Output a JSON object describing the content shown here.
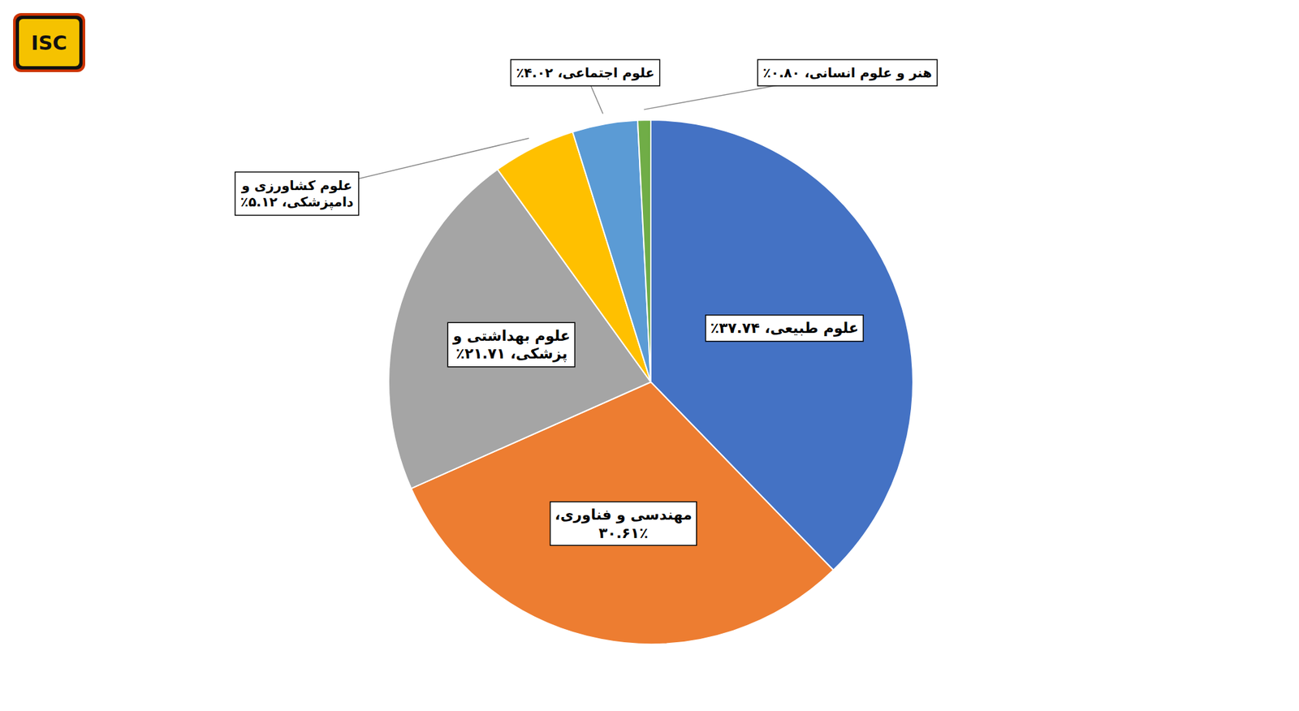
{
  "chart_data": {
    "type": "pie",
    "categories": [
      "علوم طبیعی، ۳۷.۷۴٪",
      "مهندسی و فناوری،\n۳۰.۶۱٪",
      "علوم بهداشتی و\nپزشکی، ۲۱.۷۱٪",
      "علوم کشاورزی و\nدامپزشکی، ۵.۱۲٪",
      "علوم اجتماعی، ۴.۰۲٪",
      "هنر و علوم انسانی، ۰.۸۰٪"
    ],
    "values": [
      37.74,
      30.61,
      21.71,
      5.12,
      4.02,
      0.8
    ],
    "colors": [
      "#4472C4",
      "#ED7D31",
      "#A5A5A5",
      "#FFC000",
      "#5B9BD5",
      "#70AD47"
    ],
    "annotations": [
      "ISC"
    ]
  }
}
